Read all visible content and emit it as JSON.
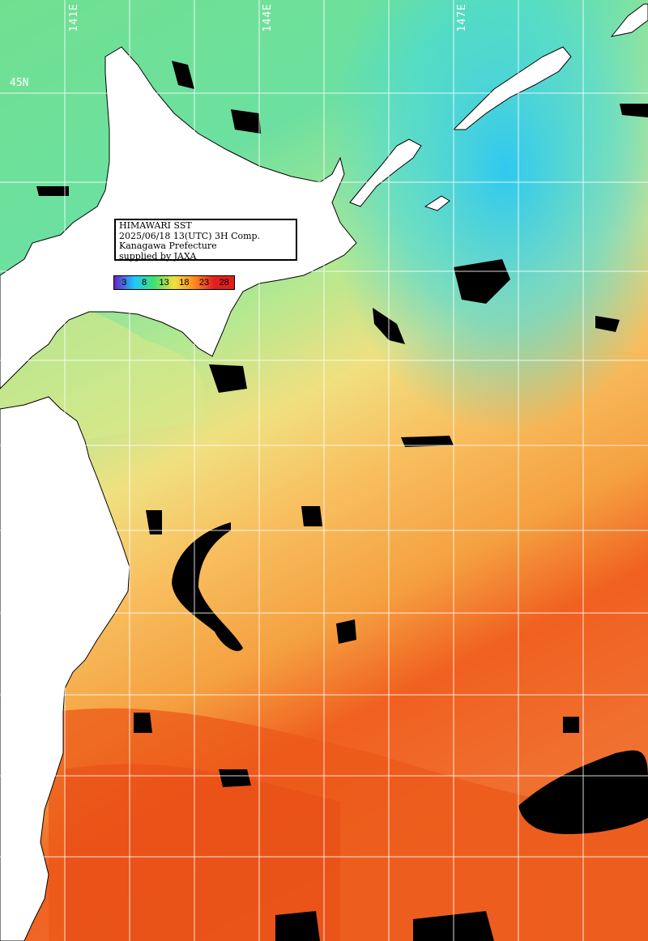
{
  "lon_labels": [
    "141E",
    "144E",
    "147E"
  ],
  "lat_labels": [
    "45N"
  ],
  "info": {
    "line1": "HIMAWARI SST",
    "line2": "2025/06/18 13(UTC) 3H Comp.",
    "line3": "Kanagawa Prefecture",
    "line4": "supplied by JAXA"
  },
  "legend": {
    "values": [
      "3",
      "8",
      "13",
      "18",
      "23",
      "28"
    ],
    "colors": [
      "#6a20c8",
      "#20c8ff",
      "#40e070",
      "#f0e040",
      "#ff8a20",
      "#e02020"
    ]
  },
  "colors": {
    "land": "#ffffff",
    "cloud": "#000000",
    "grid": "#ffffff"
  }
}
